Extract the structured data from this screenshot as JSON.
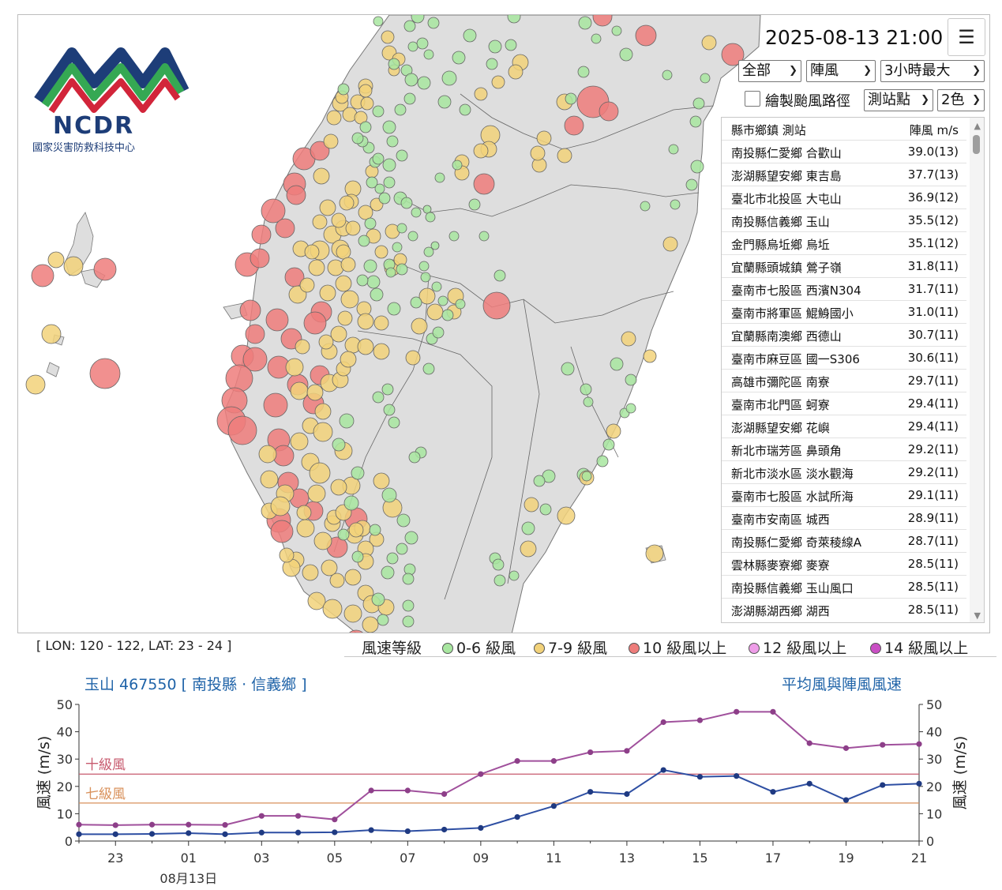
{
  "app": {
    "datetime": "2025-08-13 21:00",
    "menu_icon": "hamburger-menu-icon",
    "logo": {
      "text": "NCDR",
      "subtitle": "國家災害防救科技中心"
    }
  },
  "controls": {
    "region_select": "全部",
    "type_select": "陣風",
    "period_select": "3小時最大",
    "typhoon_track_label": "繪製颱風路徑",
    "typhoon_track_checked": false,
    "display_select": "測站點",
    "color_select": "2色"
  },
  "table": {
    "header": {
      "station": "縣市鄉鎮 測站",
      "value": "陣風 m/s"
    },
    "rows": [
      {
        "station": "南投縣仁愛鄉 合歡山",
        "value": "39.0(13)"
      },
      {
        "station": "澎湖縣望安鄉 東吉島",
        "value": "37.7(13)"
      },
      {
        "station": "臺北市北投區 大屯山",
        "value": "36.9(12)"
      },
      {
        "station": "南投縣信義鄉 玉山",
        "value": "35.5(12)"
      },
      {
        "station": "金門縣烏坵鄉 烏坵",
        "value": "35.1(12)"
      },
      {
        "station": "宜蘭縣頭城鎮 鶯子嶺",
        "value": "31.8(11)"
      },
      {
        "station": "臺南市七股區 西濱N304",
        "value": "31.7(11)"
      },
      {
        "station": "臺南市將軍區 鯤鯓國小",
        "value": "31.0(11)"
      },
      {
        "station": "宜蘭縣南澳鄉 西德山",
        "value": "30.7(11)"
      },
      {
        "station": "臺南市麻豆區 國一S306",
        "value": "30.6(11)"
      },
      {
        "station": "高雄市彌陀區 南寮",
        "value": "29.7(11)"
      },
      {
        "station": "臺南市北門區 蚵寮",
        "value": "29.4(11)"
      },
      {
        "station": "澎湖縣望安鄉 花嶼",
        "value": "29.4(11)"
      },
      {
        "station": "新北市瑞芳區 鼻頭角",
        "value": "29.2(11)"
      },
      {
        "station": "新北市淡水區 淡水觀海",
        "value": "29.2(11)"
      },
      {
        "station": "臺南市七股區 水試所海",
        "value": "29.1(11)"
      },
      {
        "station": "臺南市安南區 城西",
        "value": "28.9(11)"
      },
      {
        "station": "南投縣仁愛鄉 奇萊稜線A",
        "value": "28.7(11)"
      },
      {
        "station": "雲林縣麥寮鄉 麥寮",
        "value": "28.5(11)"
      },
      {
        "station": "南投縣信義鄉 玉山風口",
        "value": "28.5(11)"
      },
      {
        "station": "澎湖縣湖西鄉 湖西",
        "value": "28.5(11)"
      }
    ]
  },
  "map": {
    "coord_label": "[ LON: 120 - 122, LAT: 23 - 24 ]",
    "legend": {
      "title": "風速等級",
      "items": [
        {
          "label": "0-6 級風",
          "color": "#a8e6a0"
        },
        {
          "label": "7-9 級風",
          "color": "#f2d27a"
        },
        {
          "label": "10 級風以上",
          "color": "#ee7d7b"
        },
        {
          "label": "12 級風以上",
          "color": "#ee9de8"
        },
        {
          "label": "14 級風以上",
          "color": "#c94fc4"
        }
      ]
    }
  },
  "chart": {
    "station": "玉山  467550  [ 南投縣 · 信義鄉 ]",
    "title": "平均風與陣風風速"
  },
  "chart_data": {
    "type": "line",
    "x": [
      "22",
      "23",
      "00",
      "01",
      "02",
      "03",
      "04",
      "05",
      "06",
      "07",
      "08",
      "09",
      "10",
      "11",
      "12",
      "13",
      "14",
      "15",
      "16",
      "17",
      "18",
      "19",
      "20",
      "21"
    ],
    "x_tick_labels": [
      "23",
      "01",
      "03",
      "05",
      "07",
      "09",
      "11",
      "13",
      "15",
      "17",
      "19",
      "21"
    ],
    "date_label": "08月13日",
    "ylabel": "風速 (m/s)",
    "ylim": [
      0,
      50
    ],
    "yticks": [
      0,
      10,
      20,
      30,
      40,
      50
    ],
    "series": [
      {
        "values": [
          6.0,
          5.8,
          6.0,
          6.0,
          5.9,
          9.2,
          9.2,
          7.9,
          18.5,
          18.5,
          17.2,
          24.5,
          29.3,
          29.3,
          32.5,
          33.0,
          43.5,
          44.2,
          47.3,
          47.3,
          35.8,
          34.0,
          35.2,
          35.5
        ],
        "color": "#a0509c"
      },
      {
        "values": [
          2.5,
          2.5,
          2.6,
          2.9,
          2.5,
          3.1,
          3.1,
          3.2,
          4.0,
          3.6,
          4.2,
          4.8,
          8.8,
          12.8,
          18.0,
          17.2,
          26.0,
          23.5,
          23.8,
          18.0,
          21.0,
          15.0,
          20.5,
          21.0
        ],
        "color": "#2e4fa3"
      }
    ],
    "reference_lines": [
      {
        "label": "十級風",
        "value": 24.5,
        "color": "#c75a6e"
      },
      {
        "label": "七級風",
        "value": 13.9,
        "color": "#d9915b"
      }
    ]
  }
}
